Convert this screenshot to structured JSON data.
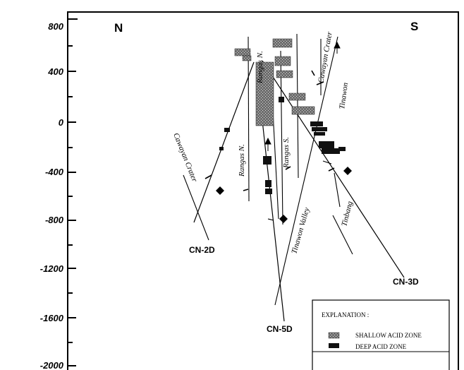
{
  "axis": {
    "ticks": [
      "800",
      "400",
      "0",
      "-400",
      "-800",
      "-1200",
      "-1600",
      "-2000"
    ]
  },
  "directions": {
    "north": "N",
    "south": "S"
  },
  "wells": {
    "cn2d": "CN-2D",
    "cn5d": "CN-5D",
    "cn3d": "CN-3D"
  },
  "faults": {
    "rangas_n_top": "Rangas N.",
    "rangas_n_mid": "Rangas N.",
    "rangas_s": "Rangas S.",
    "cawayan_crater_top": "Cawayan Crater",
    "cawayan_crater_left": "Cawayan Crater",
    "tinawon_top": "Tinawon",
    "tinawon_valley": "Tinawon Valley",
    "tinbang": "Tinbang"
  },
  "legend": {
    "title": "EXPLANATION :",
    "shallow": "SHALLOW ACID ZONE",
    "deep": "DEEP ACID ZONE",
    "shallow_color": "#7a7a7a",
    "deep_color": "#111111"
  }
}
